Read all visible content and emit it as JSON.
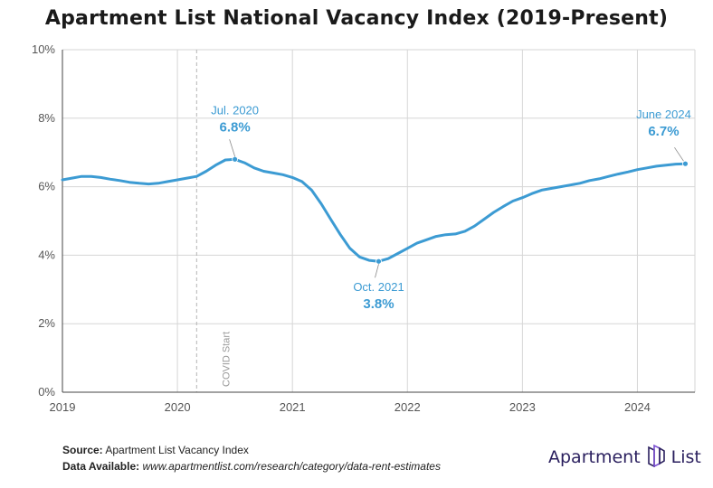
{
  "title": "Apartment List National Vacancy Index (2019-Present)",
  "chart_data": {
    "type": "line",
    "title": "Apartment List National Vacancy Index (2019-Present)",
    "xlabel": "",
    "ylabel": "",
    "x_ticks": [
      "2019",
      "2020",
      "2021",
      "2022",
      "2023",
      "2024"
    ],
    "y_ticks": [
      "0%",
      "2%",
      "4%",
      "6%",
      "8%",
      "10%"
    ],
    "ylim": [
      0,
      10
    ],
    "xlim": [
      2019.0,
      2024.5
    ],
    "grid": true,
    "line_color": "#3c9bd3",
    "series": [
      {
        "name": "",
        "x": [
          2019.0,
          2019.083,
          2019.167,
          2019.25,
          2019.333,
          2019.417,
          2019.5,
          2019.583,
          2019.667,
          2019.75,
          2019.833,
          2019.917,
          2020.0,
          2020.083,
          2020.167,
          2020.25,
          2020.333,
          2020.417,
          2020.5,
          2020.583,
          2020.667,
          2020.75,
          2020.833,
          2020.917,
          2021.0,
          2021.083,
          2021.167,
          2021.25,
          2021.333,
          2021.417,
          2021.5,
          2021.583,
          2021.667,
          2021.75,
          2021.833,
          2021.917,
          2022.0,
          2022.083,
          2022.167,
          2022.25,
          2022.333,
          2022.417,
          2022.5,
          2022.583,
          2022.667,
          2022.75,
          2022.833,
          2022.917,
          2023.0,
          2023.083,
          2023.167,
          2023.25,
          2023.333,
          2023.417,
          2023.5,
          2023.583,
          2023.667,
          2023.75,
          2023.833,
          2023.917,
          2024.0,
          2024.083,
          2024.167,
          2024.25,
          2024.333,
          2024.417
        ],
        "values": [
          6.2,
          6.25,
          6.3,
          6.3,
          6.27,
          6.22,
          6.18,
          6.13,
          6.1,
          6.08,
          6.1,
          6.15,
          6.2,
          6.25,
          6.3,
          6.45,
          6.63,
          6.78,
          6.8,
          6.7,
          6.55,
          6.45,
          6.4,
          6.35,
          6.27,
          6.15,
          5.9,
          5.5,
          5.05,
          4.6,
          4.2,
          3.95,
          3.85,
          3.82,
          3.9,
          4.05,
          4.2,
          4.35,
          4.45,
          4.55,
          4.6,
          4.62,
          4.7,
          4.85,
          5.05,
          5.25,
          5.42,
          5.58,
          5.68,
          5.8,
          5.9,
          5.95,
          6.0,
          6.05,
          6.1,
          6.18,
          6.23,
          6.3,
          6.37,
          6.43,
          6.5,
          6.55,
          6.6,
          6.63,
          6.66,
          6.67
        ]
      }
    ],
    "event": {
      "x": 2020.167,
      "label": "COVID Start"
    },
    "annotations": [
      {
        "x": 2020.5,
        "y": 6.8,
        "label": "Jul. 2020",
        "value": "6.8%",
        "pos": "above"
      },
      {
        "x": 2021.75,
        "y": 3.82,
        "label": "Oct. 2021",
        "value": "3.8%",
        "pos": "below"
      },
      {
        "x": 2024.417,
        "y": 6.67,
        "label": "June 2024",
        "value": "6.7%",
        "pos": "above-left"
      }
    ]
  },
  "footer": {
    "source_label": "Source:",
    "source_text": "Apartment List Vacancy Index",
    "data_label": "Data Available:",
    "data_text": "www.apartmentlist.com/research/category/data-rent-estimates"
  },
  "logo": {
    "left_text": "Apartment",
    "right_text": "List",
    "color": "#2a1f5e",
    "accent": "#7b4fd1"
  }
}
